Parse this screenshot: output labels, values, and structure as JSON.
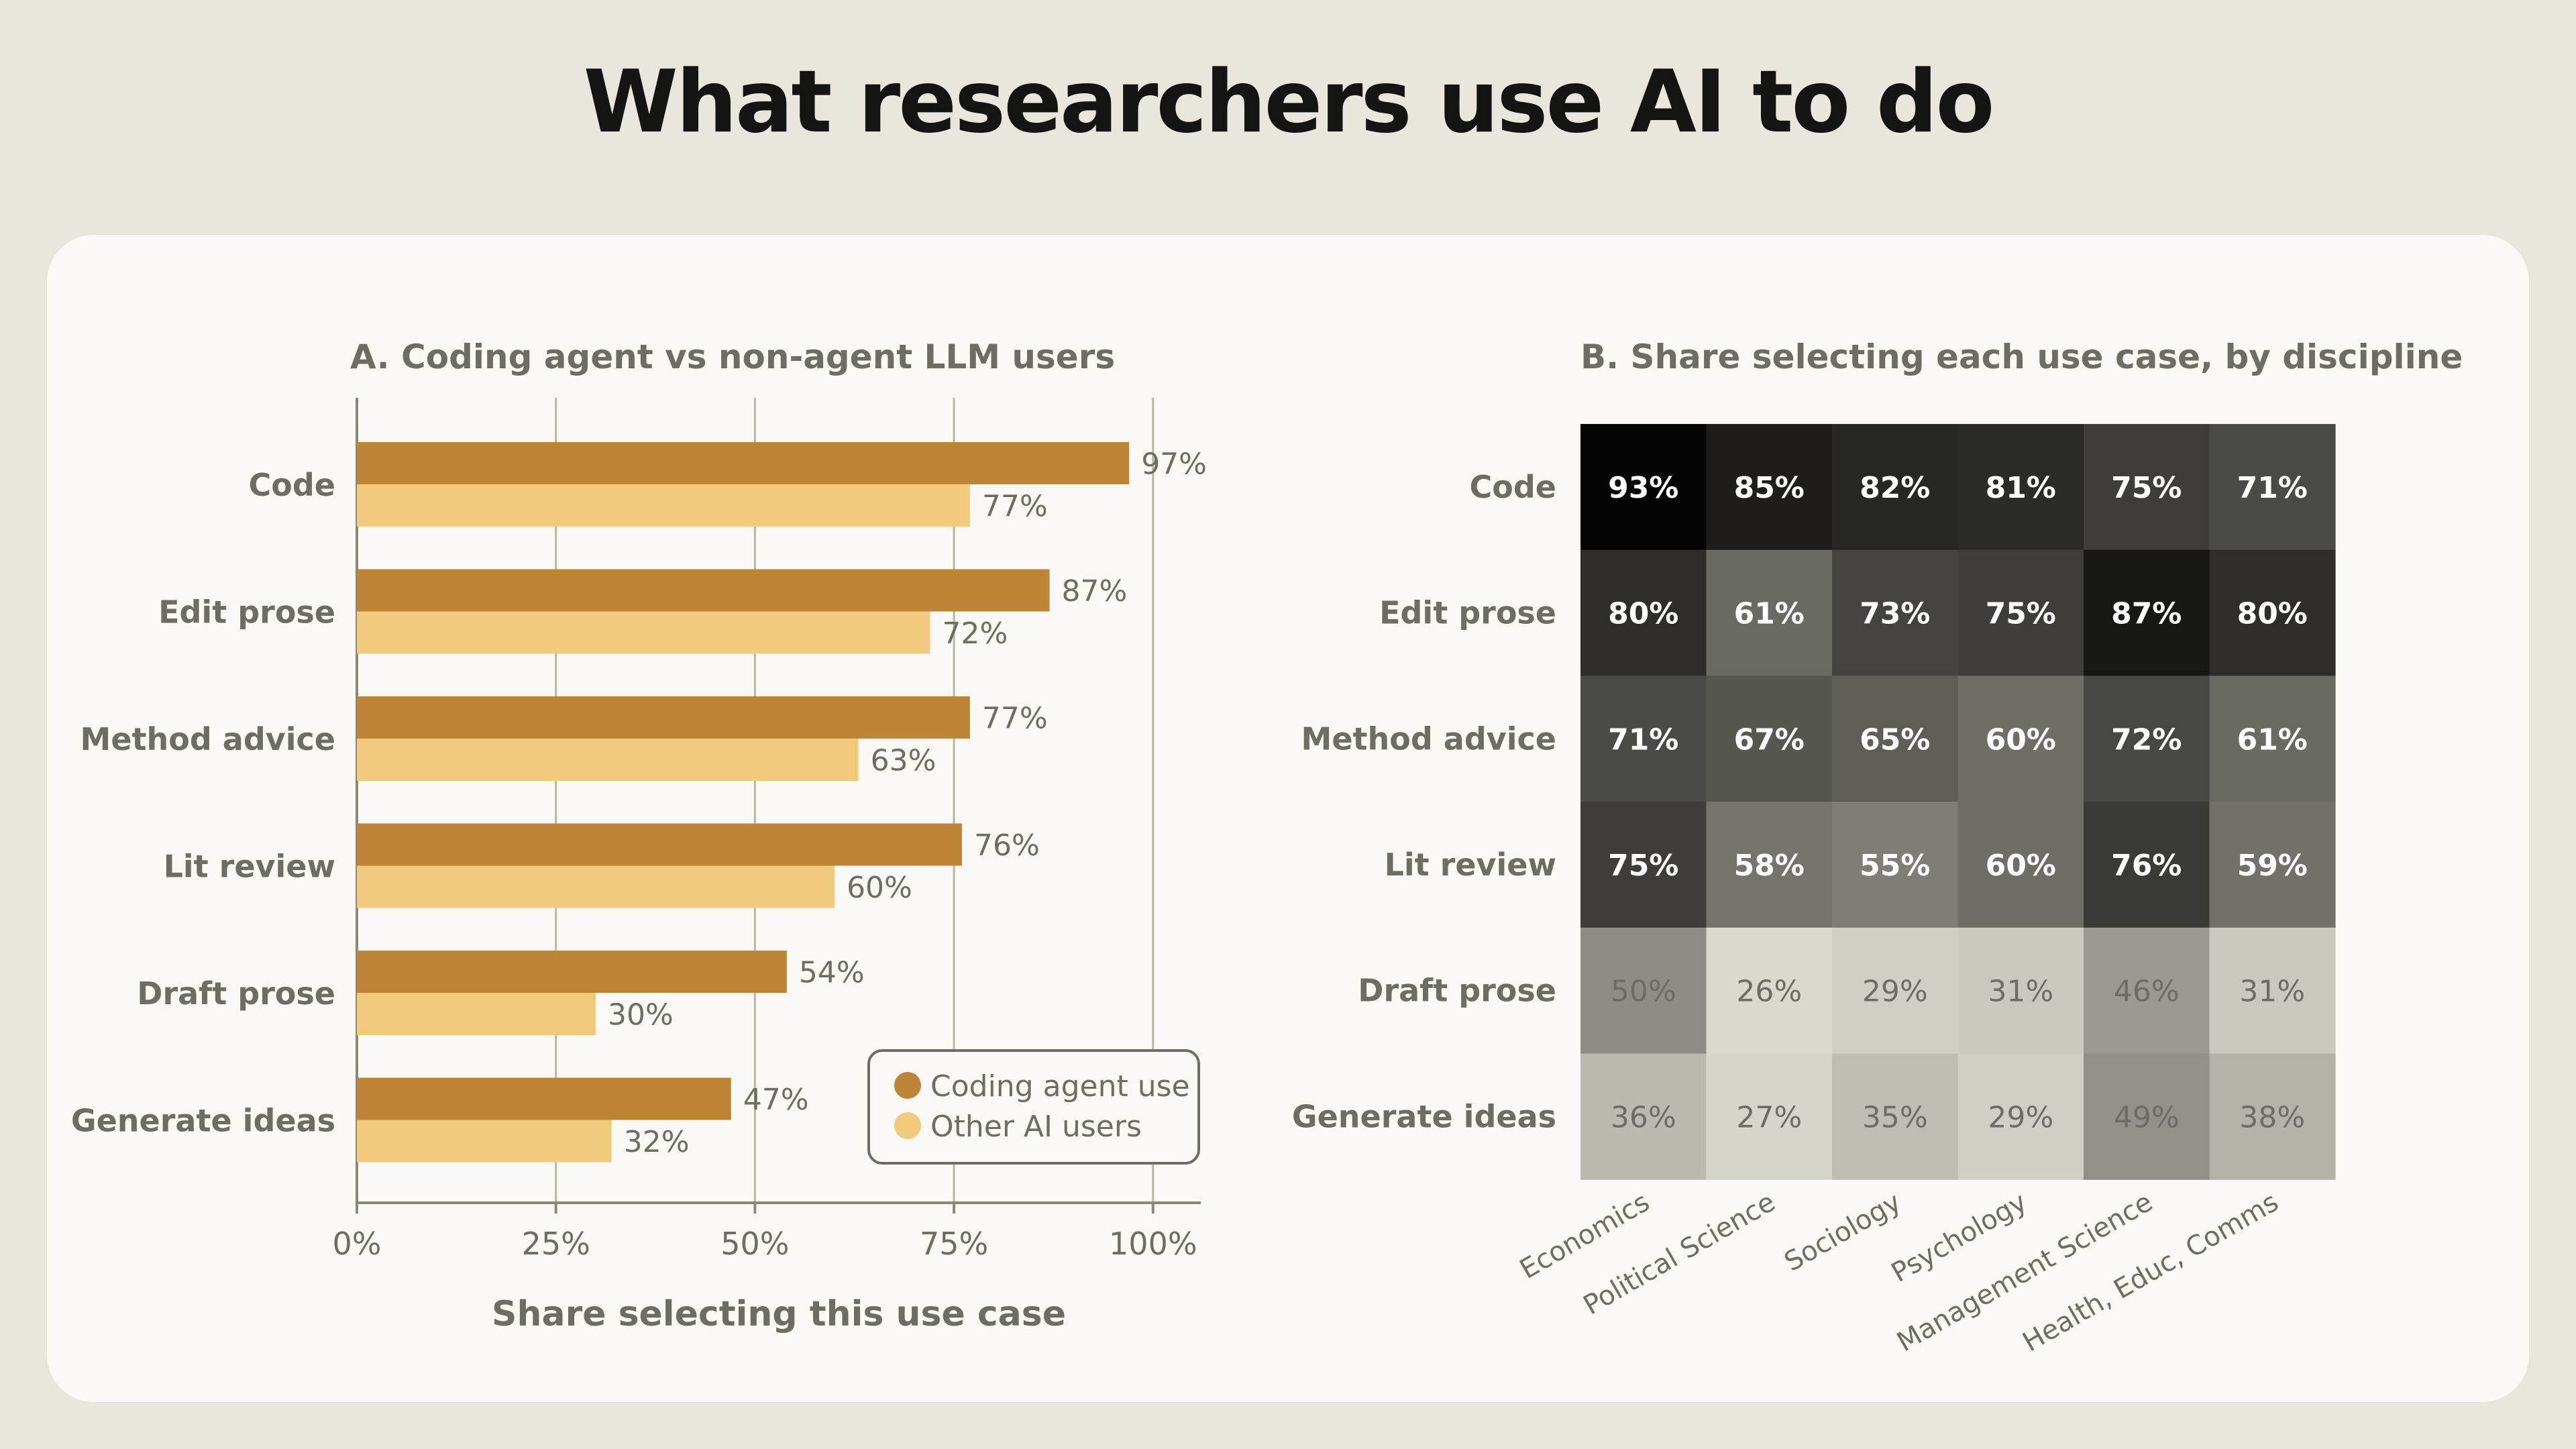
{
  "page": {
    "title": "What researchers use AI to do"
  },
  "colors": {
    "background": "#e9e6de",
    "card": "#faf9f5",
    "coding_agent": "#c08436",
    "other_ai": "#f2ca7b",
    "text_dark": "#141413",
    "text_muted": "#6e6c66",
    "grid": "#b8b5ad"
  },
  "chart_data": [
    {
      "type": "bar",
      "orientation": "horizontal",
      "title": "A. Coding agent vs non-agent LLM users",
      "xlabel": "Share selecting this use case",
      "ylabel": "",
      "categories": [
        "Code",
        "Edit prose",
        "Method advice",
        "Lit review",
        "Draft prose",
        "Generate ideas"
      ],
      "series": [
        {
          "name": "Coding agent use",
          "color": "#c08436",
          "values": [
            97,
            87,
            77,
            76,
            54,
            47
          ]
        },
        {
          "name": "Other AI users",
          "color": "#f2ca7b",
          "values": [
            77,
            72,
            63,
            60,
            30,
            32
          ]
        }
      ],
      "value_labels": {
        "Coding agent use": [
          "97%",
          "87%",
          "77%",
          "76%",
          "54%",
          "47%"
        ],
        "Other AI users": [
          "77%",
          "72%",
          "63%",
          "60%",
          "30%",
          "32%"
        ]
      },
      "xlim": [
        0,
        106
      ],
      "xticks": [
        0,
        25,
        50,
        75,
        100
      ],
      "xtick_labels": [
        "0%",
        "25%",
        "50%",
        "75%",
        "100%"
      ],
      "grid": "vertical",
      "legend_position": "bottom-right"
    },
    {
      "type": "heatmap",
      "title": "B. Share selecting each use case, by discipline",
      "rows": [
        "Code",
        "Edit prose",
        "Method advice",
        "Lit review",
        "Draft prose",
        "Generate ideas"
      ],
      "columns": [
        "Economics",
        "Political Science",
        "Sociology",
        "Psychology",
        "Management Science",
        "Health, Educ, Comms"
      ],
      "values": [
        [
          93,
          85,
          82,
          81,
          75,
          71
        ],
        [
          80,
          61,
          73,
          75,
          87,
          80
        ],
        [
          71,
          67,
          65,
          60,
          72,
          61
        ],
        [
          75,
          58,
          55,
          60,
          76,
          59
        ],
        [
          50,
          26,
          29,
          31,
          46,
          31
        ],
        [
          36,
          27,
          35,
          29,
          49,
          38
        ]
      ],
      "value_labels": [
        [
          "93%",
          "85%",
          "82%",
          "81%",
          "75%",
          "71%"
        ],
        [
          "80%",
          "61%",
          "73%",
          "75%",
          "87%",
          "80%"
        ],
        [
          "71%",
          "67%",
          "65%",
          "60%",
          "72%",
          "61%"
        ],
        [
          "75%",
          "58%",
          "55%",
          "60%",
          "76%",
          "59%"
        ],
        [
          "50%",
          "26%",
          "29%",
          "31%",
          "46%",
          "31%"
        ],
        [
          "36%",
          "27%",
          "35%",
          "29%",
          "49%",
          "38%"
        ]
      ],
      "colorscale": "grayscale (higher = darker)"
    }
  ]
}
